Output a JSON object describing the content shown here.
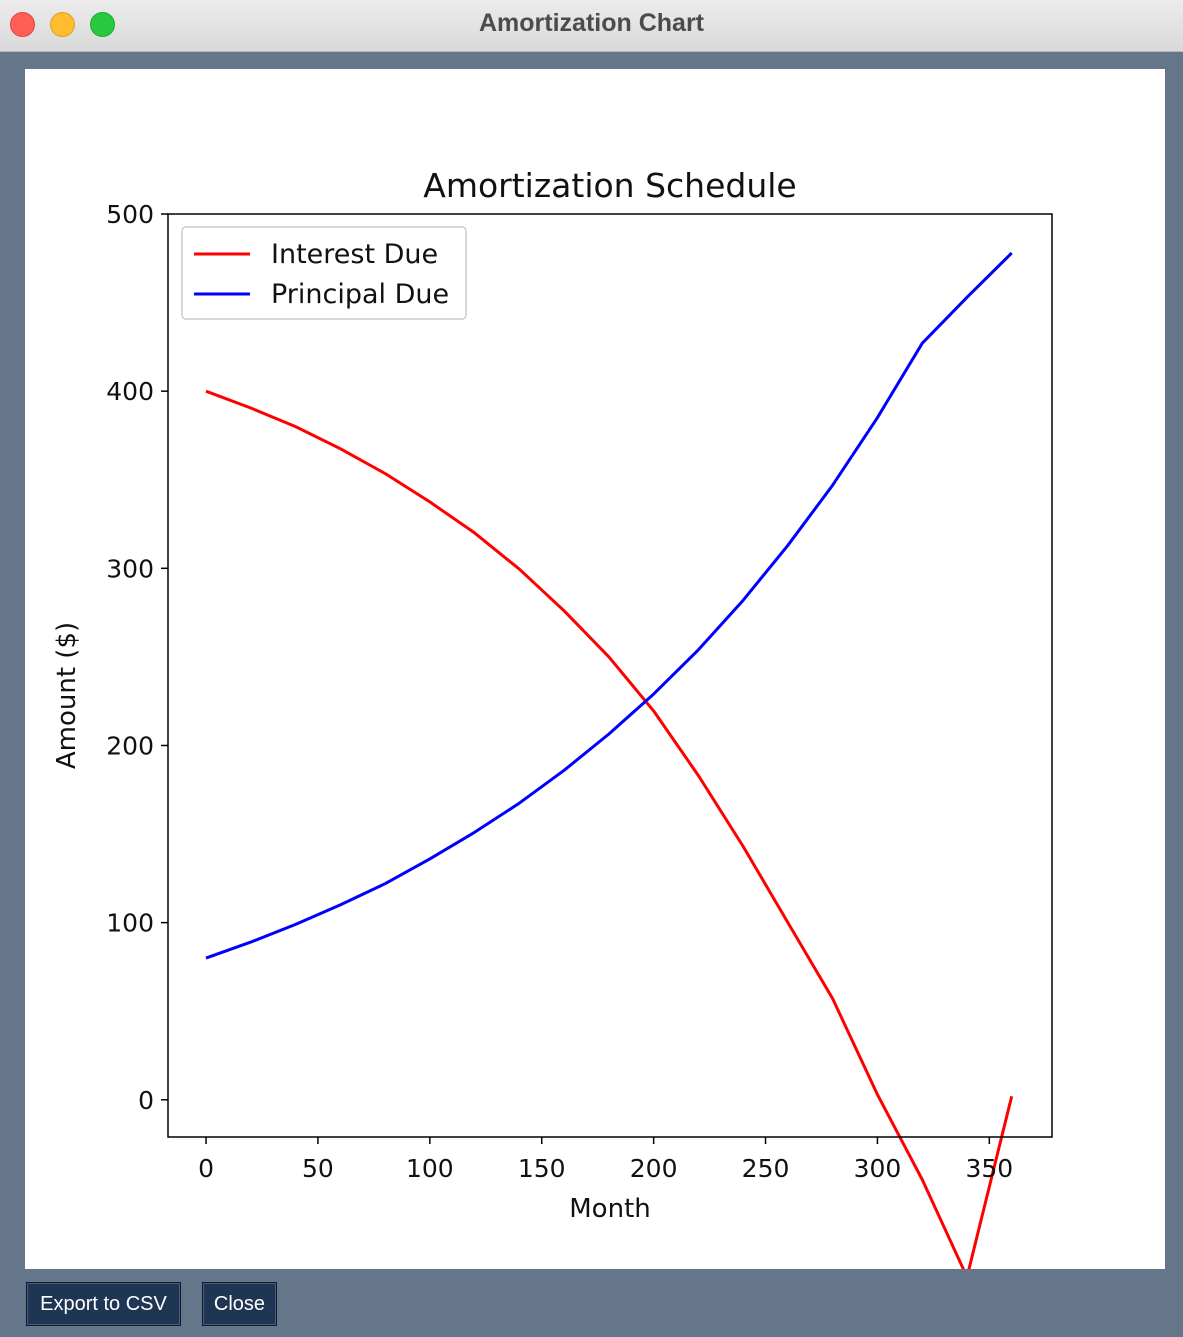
{
  "window": {
    "title": "Amortization Chart"
  },
  "buttons": {
    "export_label": "Export to CSV",
    "close_label": "Close"
  },
  "colors": {
    "interest": "#ff0000",
    "principal": "#0000ff",
    "frame": "#65768b",
    "button": "#1f3554"
  },
  "chart_data": {
    "type": "line",
    "title": "Amortization Schedule",
    "xlabel": "Month",
    "ylabel": "Amount ($)",
    "xlim": [
      -17,
      378
    ],
    "ylim": [
      -21,
      500
    ],
    "xticks": [
      0,
      50,
      100,
      150,
      200,
      250,
      300,
      350
    ],
    "yticks": [
      0,
      100,
      200,
      300,
      400,
      500
    ],
    "legend": {
      "placement": "top-left"
    },
    "grid": false,
    "x": [
      0,
      20,
      40,
      60,
      80,
      100,
      120,
      140,
      160,
      180,
      200,
      220,
      240,
      260,
      280,
      300,
      320,
      340,
      360
    ],
    "series": [
      {
        "name": "Interest Due",
        "color": "#ff0000",
        "values": [
          400,
          390.5,
          380,
          367.5,
          353.5,
          337.5,
          320,
          299.5,
          276,
          250,
          219.5,
          183,
          143,
          100,
          57,
          3,
          -45,
          -100,
          2
        ]
      },
      {
        "name": "Principal Due",
        "color": "#0000ff",
        "values": [
          80,
          89,
          99,
          110,
          122,
          136,
          151,
          167.5,
          186,
          206.5,
          229,
          254,
          282,
          313,
          347,
          385,
          427,
          453,
          478
        ]
      }
    ]
  }
}
